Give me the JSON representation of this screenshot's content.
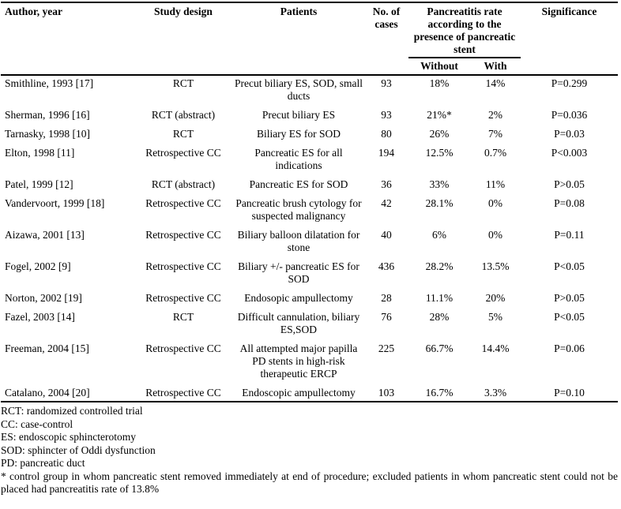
{
  "table": {
    "headers": {
      "author": "Author, year",
      "design": "Study design",
      "patients": "Patients",
      "cases": "No. of cases",
      "group": "Pancreatitis rate according to the presence of pancreatic stent",
      "without": "Without",
      "with": "With",
      "significance": "Significance"
    },
    "rows": [
      {
        "author": "Smithline, 1993 [17]",
        "design": "RCT",
        "patients": "Precut biliary ES, SOD, small ducts",
        "cases": "93",
        "without": "18%",
        "with": "14%",
        "significance": "P=0.299"
      },
      {
        "author": "Sherman, 1996 [16]",
        "design": "RCT (abstract)",
        "patients": "Precut biliary ES",
        "cases": "93",
        "without": "21%*",
        "with": "2%",
        "significance": "P=0.036"
      },
      {
        "author": "Tarnasky, 1998 [10]",
        "design": "RCT",
        "patients": "Biliary ES for SOD",
        "cases": "80",
        "without": "26%",
        "with": "7%",
        "significance": "P=0.03"
      },
      {
        "author": "Elton, 1998 [11]",
        "design": "Retrospective CC",
        "patients": "Pancreatic ES for all indications",
        "cases": "194",
        "without": "12.5%",
        "with": "0.7%",
        "significance": "P<0.003"
      },
      {
        "author": "Patel, 1999 [12]",
        "design": "RCT (abstract)",
        "patients": "Pancreatic ES for SOD",
        "cases": "36",
        "without": "33%",
        "with": "11%",
        "significance": "P>0.05"
      },
      {
        "author": "Vandervoort, 1999 [18]",
        "design": "Retrospective CC",
        "patients": "Pancreatic brush cytology for suspected malignancy",
        "cases": "42",
        "without": "28.1%",
        "with": "0%",
        "significance": "P=0.08"
      },
      {
        "author": "Aizawa, 2001 [13]",
        "design": "Retrospective CC",
        "patients": "Biliary balloon dilatation for stone",
        "cases": "40",
        "without": "6%",
        "with": "0%",
        "significance": "P=0.11"
      },
      {
        "author": "Fogel, 2002 [9]",
        "design": "Retrospective CC",
        "patients": "Biliary +/- pancreatic ES for SOD",
        "cases": "436",
        "without": "28.2%",
        "with": "13.5%",
        "significance": "P<0.05"
      },
      {
        "author": "Norton, 2002 [19]",
        "design": "Retrospective CC",
        "patients": "Endosopic ampullectomy",
        "cases": "28",
        "without": "11.1%",
        "with": "20%",
        "significance": "P>0.05"
      },
      {
        "author": "Fazel, 2003 [14]",
        "design": "RCT",
        "patients": "Difficult cannulation, biliary ES,SOD",
        "cases": "76",
        "without": "28%",
        "with": "5%",
        "significance": "P<0.05"
      },
      {
        "author": "Freeman, 2004 [15]",
        "design": "Retrospective CC",
        "patients": "All attempted major papilla PD stents in high-risk therapeutic ERCP",
        "cases": "225",
        "without": "66.7%",
        "with": "14.4%",
        "significance": "P=0.06"
      },
      {
        "author": "Catalano, 2004 [20]",
        "design": "Retrospective CC",
        "patients": "Endoscopic ampullectomy",
        "cases": "103",
        "without": "16.7%",
        "with": "3.3%",
        "significance": "P=0.10"
      }
    ]
  },
  "footnotes": [
    "RCT: randomized controlled trial",
    "CC: case-control",
    "ES: endoscopic sphincterotomy",
    "SOD: sphincter of Oddi dysfunction",
    "PD: pancreatic duct",
    "* control group in whom pancreatic stent removed immediately at end of procedure; excluded patients in whom pancreatic stent could not be placed had pancreatitis rate of 13.8%"
  ]
}
